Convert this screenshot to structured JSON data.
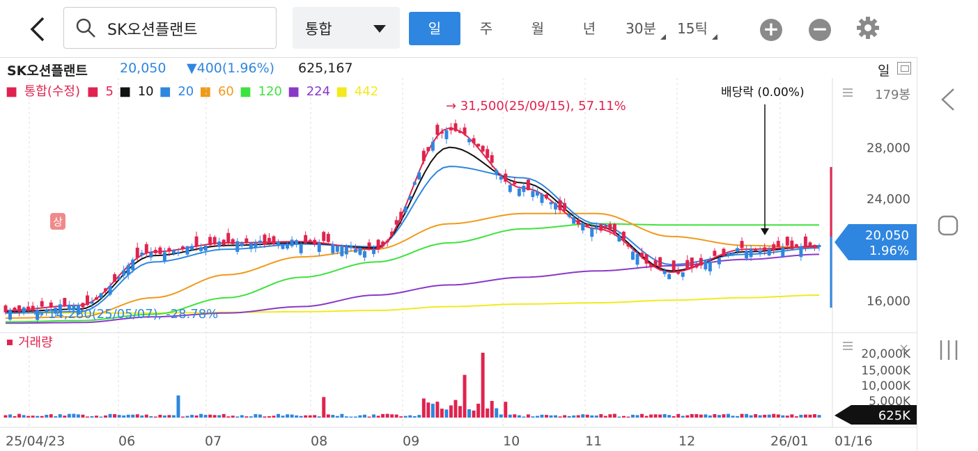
{
  "header": {
    "search_value": "SK오션플랜트",
    "market_select": "통합",
    "periods": [
      {
        "label": "일",
        "active": true
      },
      {
        "label": "주",
        "active": false
      },
      {
        "label": "월",
        "active": false
      },
      {
        "label": "년",
        "active": false
      },
      {
        "label": "30분",
        "active": false
      },
      {
        "label": "15틱",
        "active": false
      }
    ]
  },
  "summary": {
    "name": "SK오션플랜트",
    "price": "20,050",
    "change": "▼400(1.96%)",
    "volume": "625,167",
    "period_label": "일"
  },
  "legend": {
    "main": "통합(수정)",
    "mas": [
      {
        "label": "5",
        "color": "#e0234e"
      },
      {
        "label": "10",
        "color": "#111111"
      },
      {
        "label": "20",
        "color": "#2f86e0"
      },
      {
        "label": "60",
        "color": "#f09a1a"
      },
      {
        "label": "120",
        "color": "#3ee23e"
      },
      {
        "label": "224",
        "color": "#8a38c8"
      },
      {
        "label": "442",
        "color": "#f2ea1c"
      }
    ],
    "volume_label": "거래량"
  },
  "annotations": {
    "high": "→ 31,500(25/09/15), 57.11%",
    "low": "→ 14,280(25/05/07), -28.78%",
    "dividend": "배당락 (0.00%)",
    "limit_up_badge": "상",
    "candle_count": "179봉"
  },
  "price_axis": [
    "28,000",
    "24,000",
    "20,000",
    "16,000"
  ],
  "volume_axis": [
    "20,000K",
    "15,000K",
    "10,000K",
    "5,000K"
  ],
  "current_tag": {
    "price": "20,050",
    "pct": "1.96%"
  },
  "volume_tag": "625K",
  "date_axis": [
    "25/04/23",
    "06",
    "07",
    "08",
    "09",
    "10",
    "11",
    "12",
    "26/01",
    "01/16"
  ],
  "colors": {
    "up": "#e0234e",
    "down": "#2f86e0",
    "accent": "#2f86e0"
  },
  "chart_data": {
    "type": "candlestick",
    "ylim": [
      14000,
      33000
    ],
    "x": [
      "25/04/23",
      "25/05/07",
      "06",
      "07",
      "08",
      "09",
      "25/09/15",
      "10",
      "11",
      "12",
      "26/01",
      "01/16"
    ],
    "close_approx": [
      15000,
      14280,
      19800,
      20500,
      20300,
      19800,
      31500,
      24500,
      21500,
      18000,
      19900,
      20050
    ],
    "series": [
      {
        "name": "5",
        "values": [
          15200,
          15600,
          19800,
          20500,
          20600,
          20000,
          29500,
          24800,
          21600,
          18200,
          20000,
          20200
        ]
      },
      {
        "name": "10",
        "values": [
          15100,
          15300,
          19500,
          20300,
          20500,
          20100,
          28000,
          25200,
          21800,
          18300,
          19800,
          20250
        ]
      },
      {
        "name": "20",
        "values": [
          15000,
          15100,
          19000,
          20000,
          20400,
          20200,
          26500,
          25600,
          22000,
          18800,
          19600,
          20100
        ]
      },
      {
        "name": "60",
        "values": [
          14600,
          14700,
          16200,
          18000,
          19400,
          20000,
          22000,
          22800,
          22800,
          21000,
          20300,
          20100
        ]
      },
      {
        "name": "120",
        "values": [
          14300,
          14400,
          14900,
          16200,
          17800,
          19000,
          20500,
          21600,
          22000,
          21900,
          21900,
          21900
        ]
      },
      {
        "name": "224",
        "values": [
          14200,
          14250,
          14700,
          15000,
          15500,
          16400,
          17200,
          17800,
          18300,
          18700,
          19200,
          19600
        ]
      },
      {
        "name": "442",
        "values": [
          15000,
          15000,
          15000,
          15050,
          15100,
          15200,
          15500,
          15700,
          15800,
          16000,
          16200,
          16400
        ]
      }
    ],
    "volume_ylim": [
      0,
      22000
    ]
  }
}
